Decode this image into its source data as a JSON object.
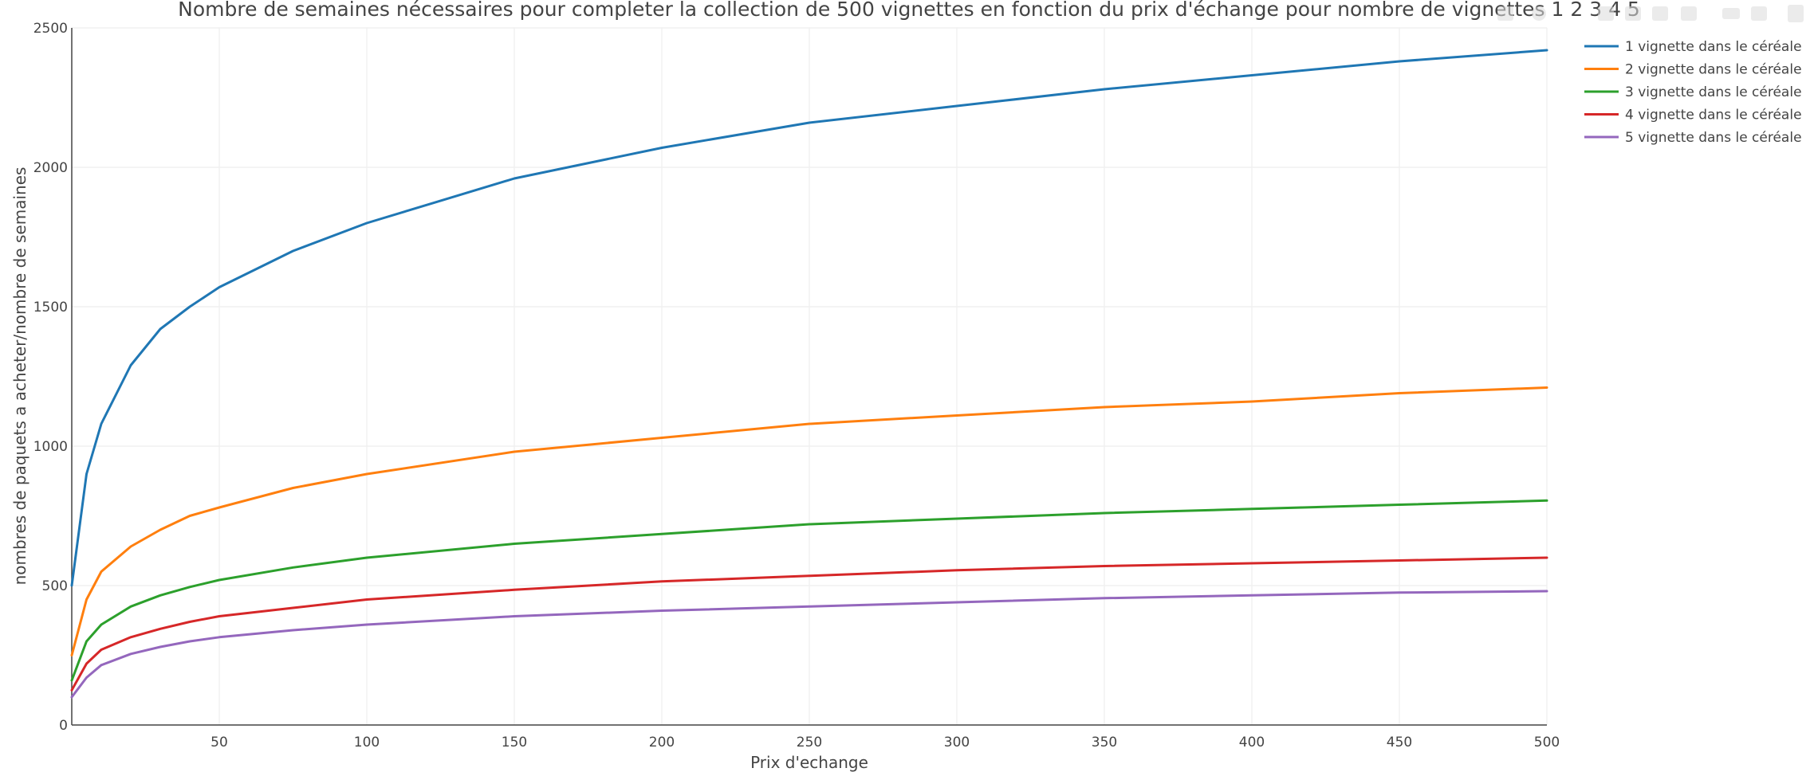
{
  "chart_data": {
    "type": "line",
    "title": "Nombre de semaines nécessaires pour completer la collection de 500 vignettes en fonction du prix d'échange pour nombre de vignettes 1 2 3 4 5",
    "xlabel": "Prix d'echange",
    "ylabel": "nombres de paquets a acheter/nombre de semaines",
    "xlim": [
      0,
      500
    ],
    "ylim": [
      0,
      2500
    ],
    "x_ticks": [
      50,
      100,
      150,
      200,
      250,
      300,
      350,
      400,
      450,
      500
    ],
    "y_ticks": [
      0,
      500,
      1000,
      1500,
      2000,
      2500
    ],
    "grid": true,
    "legend_position": "top-right",
    "x": [
      0,
      5,
      10,
      20,
      30,
      40,
      50,
      75,
      100,
      150,
      200,
      250,
      300,
      350,
      400,
      450,
      500
    ],
    "series": [
      {
        "name": "1 vignette dans le céréale",
        "color": "#1f77b4",
        "values": [
          500,
          900,
          1080,
          1290,
          1420,
          1500,
          1570,
          1700,
          1800,
          1960,
          2070,
          2160,
          2220,
          2280,
          2330,
          2380,
          2420
        ]
      },
      {
        "name": "2 vignette dans le céréale",
        "color": "#ff7f0e",
        "values": [
          250,
          450,
          550,
          640,
          700,
          750,
          780,
          850,
          900,
          980,
          1030,
          1080,
          1110,
          1140,
          1160,
          1190,
          1210
        ]
      },
      {
        "name": "3 vignette dans le céréale",
        "color": "#2ca02c",
        "values": [
          160,
          300,
          360,
          425,
          465,
          495,
          520,
          565,
          600,
          650,
          685,
          720,
          740,
          760,
          775,
          790,
          805
        ]
      },
      {
        "name": "4 vignette dans le céréale",
        "color": "#d62728",
        "values": [
          125,
          220,
          270,
          315,
          345,
          370,
          390,
          420,
          450,
          485,
          515,
          535,
          555,
          570,
          580,
          590,
          600
        ]
      },
      {
        "name": "5 vignette dans le céréale",
        "color": "#9467bd",
        "values": [
          100,
          170,
          215,
          255,
          280,
          300,
          315,
          340,
          360,
          390,
          410,
          425,
          440,
          455,
          465,
          475,
          480
        ]
      }
    ]
  }
}
